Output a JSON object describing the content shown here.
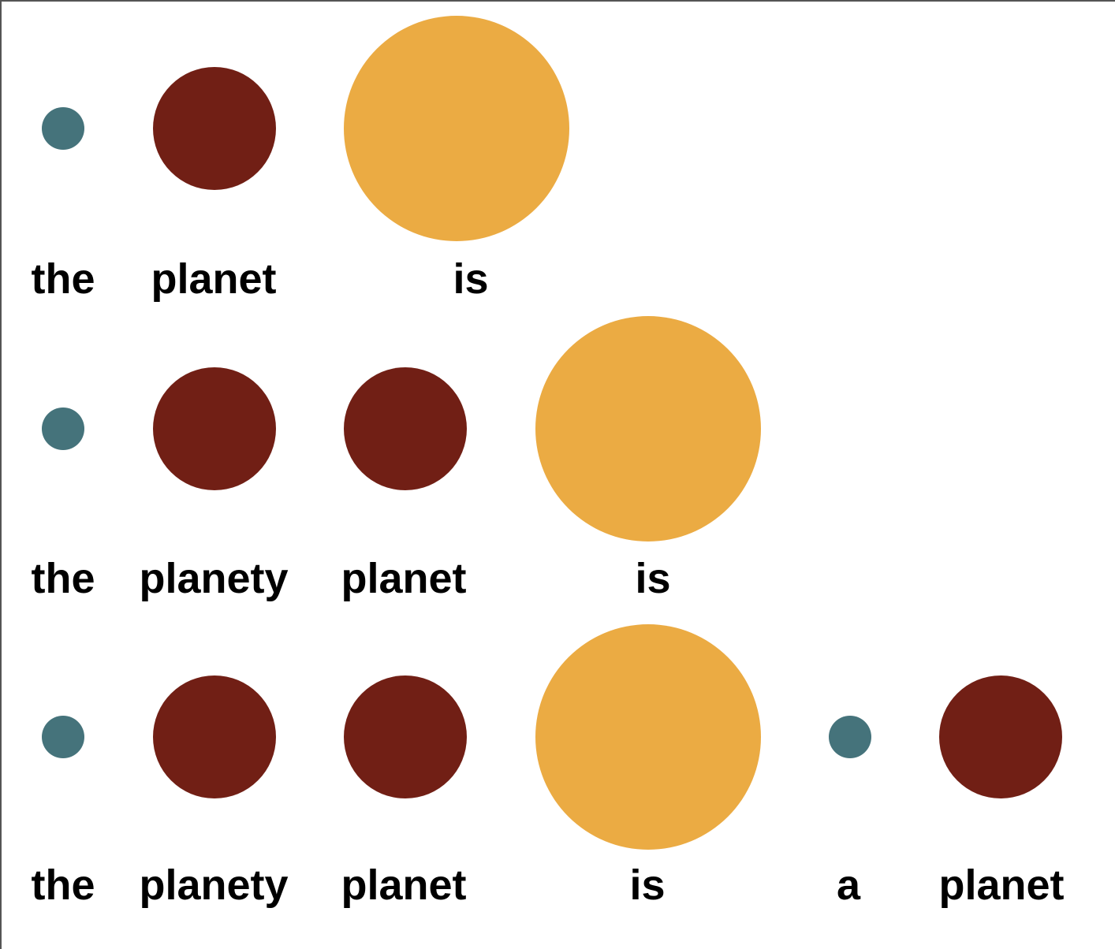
{
  "colors": {
    "small": "#45737b",
    "medium": "#711f15",
    "large": "#ebab43"
  },
  "rows": [
    {
      "tokens": [
        {
          "word": "the",
          "size": "small"
        },
        {
          "word": "planet",
          "size": "medium"
        },
        {
          "word": "is",
          "size": "large"
        }
      ]
    },
    {
      "tokens": [
        {
          "word": "the",
          "size": "small"
        },
        {
          "word": "planety",
          "size": "medium"
        },
        {
          "word": "planet",
          "size": "medium"
        },
        {
          "word": "is",
          "size": "large"
        }
      ]
    },
    {
      "tokens": [
        {
          "word": "the",
          "size": "small"
        },
        {
          "word": "planety",
          "size": "medium"
        },
        {
          "word": "planet",
          "size": "medium"
        },
        {
          "word": "is",
          "size": "large"
        },
        {
          "word": "a",
          "size": "small"
        },
        {
          "word": "planet",
          "size": "medium"
        }
      ]
    }
  ]
}
